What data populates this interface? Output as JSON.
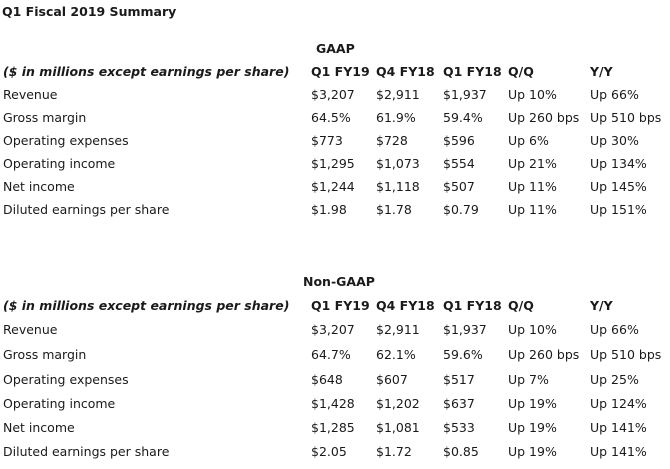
{
  "title": "Q1 Fiscal 2019 Summary",
  "gaap": {
    "heading": "GAAP",
    "columns": [
      "($ in millions except earnings per share)",
      "Q1 FY19",
      "Q4 FY18",
      "Q1 FY18",
      "Q/Q",
      "Y/Y"
    ],
    "rows": [
      [
        "Revenue",
        "$3,207",
        "$2,911",
        "$1,937",
        "Up 10%",
        "Up 66%"
      ],
      [
        "Gross margin",
        "64.5%",
        "61.9%",
        "59.4%",
        "Up 260 bps",
        "Up 510 bps"
      ],
      [
        "Operating expenses",
        "$773",
        "$728",
        "$596",
        "Up 6%",
        "Up 30%"
      ],
      [
        "Operating income",
        "$1,295",
        "$1,073",
        "$554",
        "Up 21%",
        "Up 134%"
      ],
      [
        "Net income",
        "$1,244",
        "$1,118",
        "$507",
        "Up 11%",
        "Up 145%"
      ],
      [
        "Diluted earnings per share",
        "$1.98",
        "$1.78",
        "$0.79",
        "Up 11%",
        "Up 151%"
      ]
    ]
  },
  "non_gaap": {
    "heading": "Non-GAAP",
    "columns": [
      "($ in millions except earnings per share)",
      "Q1 FY19",
      "Q4 FY18",
      "Q1 FY18",
      "Q/Q",
      "Y/Y"
    ],
    "rows": [
      [
        "Revenue",
        "$3,207",
        "$2,911",
        "$1,937",
        "Up 10%",
        "Up 66%"
      ],
      [
        "Gross margin",
        "64.7%",
        "62.1%",
        "59.6%",
        "Up 260 bps",
        "Up 510 bps"
      ],
      [
        "Operating expenses",
        "$648",
        "$607",
        "$517",
        "Up 7%",
        "Up 25%"
      ],
      [
        "Operating income",
        "$1,428",
        "$1,202",
        "$637",
        "Up 19%",
        "Up 124%"
      ],
      [
        "Net income",
        "$1,285",
        "$1,081",
        "$533",
        "Up 19%",
        "Up 141%"
      ],
      [
        "Diluted earnings per share",
        "$2.05",
        "$1.72",
        "$0.85",
        "Up 19%",
        "Up 141%"
      ]
    ]
  }
}
